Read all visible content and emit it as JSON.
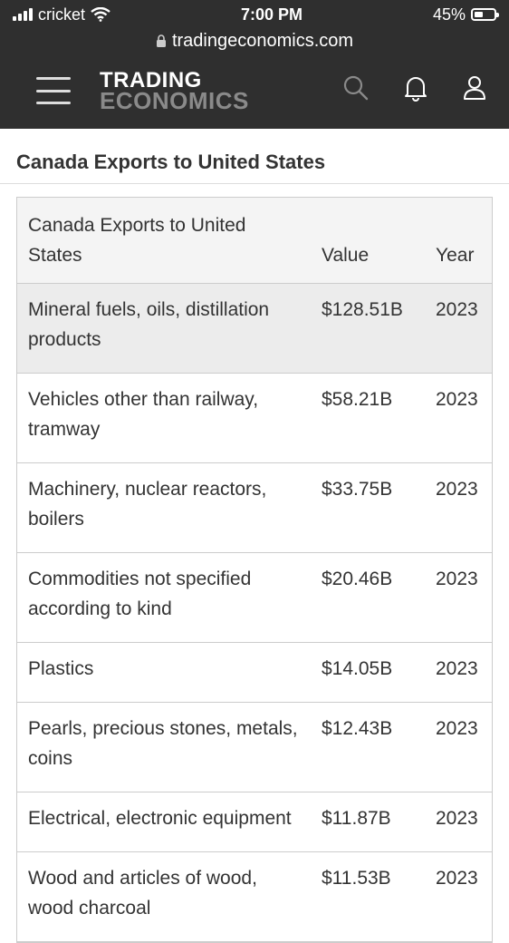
{
  "status_bar": {
    "carrier": "cricket",
    "time": "7:00 PM",
    "battery": "45%"
  },
  "browser": {
    "url": "tradingeconomics.com"
  },
  "header": {
    "logo_line1": "TRADING",
    "logo_line2": "ECONOMICS",
    "icons": [
      "menu-icon",
      "search-icon",
      "bell-icon",
      "user-icon"
    ]
  },
  "page": {
    "title": "Canada Exports to United States"
  },
  "table": {
    "headers": [
      "Canada Exports to United States",
      "Value",
      "Year"
    ],
    "rows": [
      [
        "Mineral fuels, oils, distillation products",
        "$128.51B",
        "2023"
      ],
      [
        "Vehicles other than railway, tramway",
        "$58.21B",
        "2023"
      ],
      [
        "Machinery, nuclear reactors, boilers",
        "$33.75B",
        "2023"
      ],
      [
        "Commodities not specified according to kind",
        "$20.46B",
        "2023"
      ],
      [
        "Plastics",
        "$14.05B",
        "2023"
      ],
      [
        "Pearls, precious stones, metals, coins",
        "$12.43B",
        "2023"
      ],
      [
        "Electrical, electronic equipment",
        "$11.87B",
        "2023"
      ],
      [
        "Wood and articles of wood, wood charcoal",
        "$11.53B",
        "2023"
      ]
    ]
  }
}
